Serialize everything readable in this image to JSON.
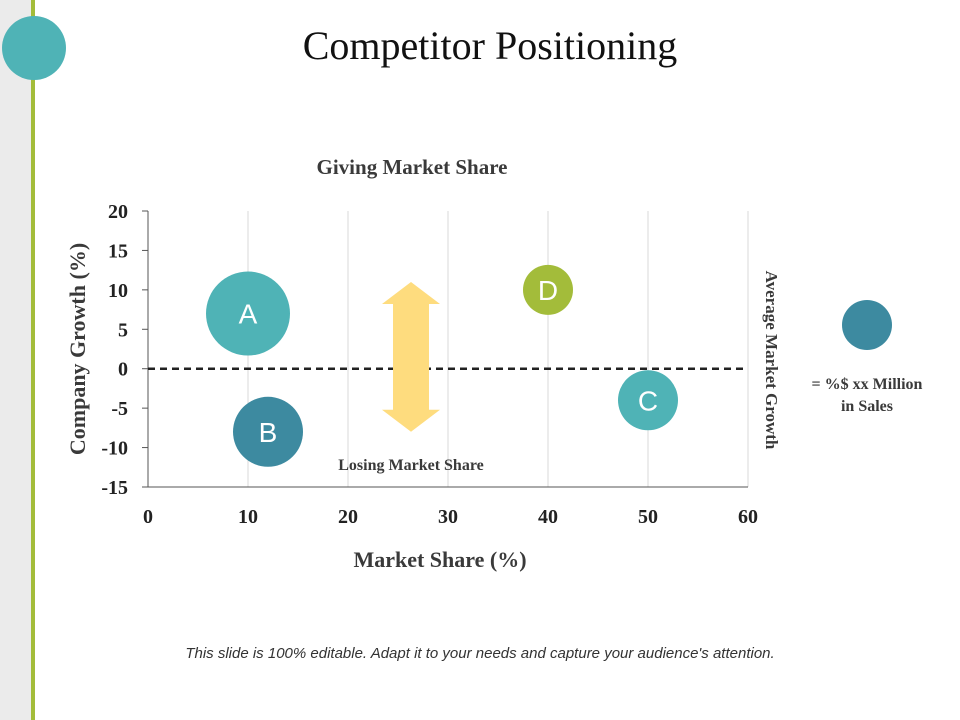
{
  "slide": {
    "title": "Competitor Positioning",
    "footer": "This slide is 100% editable. Adapt it to your needs and capture your audience's attention."
  },
  "colors": {
    "accent_teal": "#4fb3b6",
    "accent_green": "#a3bc3a",
    "dark_teal": "#3d8aa0",
    "arrow_yellow": "#fedc7e"
  },
  "chart_data": {
    "type": "bubble",
    "xlabel": "Market Share (%)",
    "ylabel": "Company Growth (%)",
    "xlim": [
      0,
      60
    ],
    "ylim": [
      -15,
      20
    ],
    "xticks": [
      0,
      10,
      20,
      30,
      40,
      50,
      60
    ],
    "yticks": [
      20,
      15,
      10,
      5,
      0,
      -5,
      -10,
      -15
    ],
    "grid": "vertical",
    "reference_line": {
      "y": 0,
      "style": "dashed",
      "label": "Average Market Growth"
    },
    "annotations": {
      "top": "Giving Market Share",
      "bottom": "Losing Market Share"
    },
    "arrow": {
      "x": 26.3,
      "y_from": 11,
      "y_to": -8,
      "direction": "both"
    },
    "legend": {
      "label_line1": "= %$ xx Million",
      "label_line2": "in Sales",
      "color": "#3d8aa0"
    },
    "bubbles": [
      {
        "label": "A",
        "x": 10,
        "y": 7,
        "size": 42,
        "color": "#4fb3b6"
      },
      {
        "label": "B",
        "x": 12,
        "y": -8,
        "size": 35,
        "color": "#3d8aa0"
      },
      {
        "label": "C",
        "x": 50,
        "y": -4,
        "size": 30,
        "color": "#4fb3b6"
      },
      {
        "label": "D",
        "x": 40,
        "y": 10,
        "size": 25,
        "color": "#a3bc3a"
      }
    ]
  }
}
